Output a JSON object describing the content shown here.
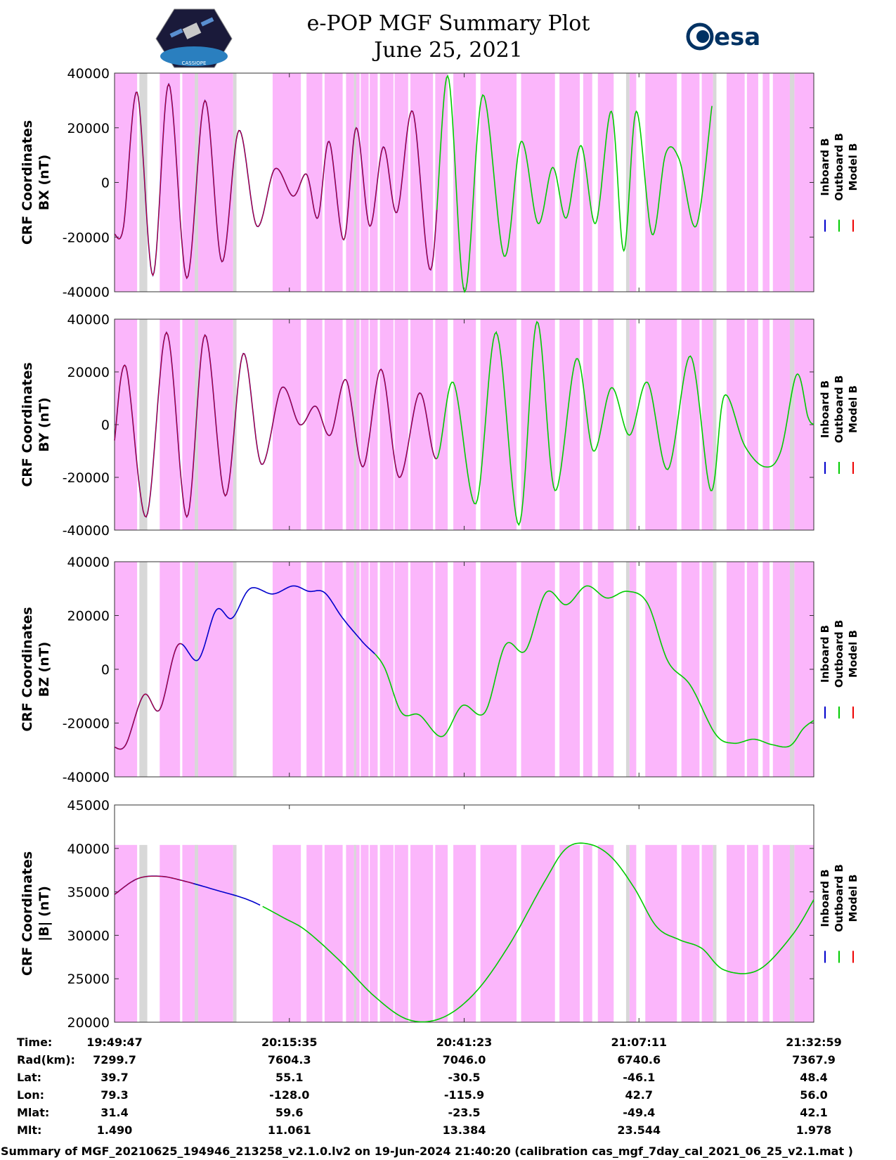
{
  "header": {
    "title": "e-POP MGF Summary Plot",
    "date": "June 25, 2021",
    "logo_left_name": "CASSIOPE mission patch",
    "logo_left_text": "CASSIOPE",
    "logo_right_text": "esa"
  },
  "colors": {
    "inboard": "#0000cc",
    "outboard": "#00cc00",
    "model": "#ee0000",
    "shade_magenta": "#fbb6fb",
    "shade_gray": "#d8d8d8"
  },
  "legend": {
    "inboard": "Inboard B",
    "outboard": "Outboard B",
    "model": "Model B"
  },
  "chart_data": [
    {
      "type": "line",
      "title": "",
      "xlabel": "",
      "ylabel_line1": "CRF Coordinates",
      "ylabel_line2": "BX (nT)",
      "ylim": [
        -40000,
        40000
      ],
      "yticks": [
        40000,
        20000,
        0,
        -20000,
        -40000
      ],
      "ytick_labels": [
        "40000",
        "20000",
        "0",
        "-20000",
        "-40000"
      ],
      "x_range_s": [
        0,
        6192
      ],
      "shaded_ylim": [
        -40000,
        40000
      ],
      "series": [
        {
          "name": "Model B",
          "x": [
            0,
            80,
            200,
            340,
            480,
            640,
            800,
            950,
            1100,
            1260,
            1420,
            1580,
            1700,
            1800,
            1900,
            2030,
            2140,
            2260,
            2380,
            2500,
            2640,
            2800,
            2950,
            3100,
            3260,
            3450,
            3600,
            3750,
            3880,
            4000,
            4130,
            4260,
            4400,
            4510,
            4620,
            4760,
            4880,
            5000,
            5150,
            5290,
            5450,
            5620,
            5780,
            5900,
            5980,
            6070,
            6192
          ],
          "y": [
            -19000,
            -16000,
            33000,
            -34000,
            36000,
            -35000,
            30000,
            -29000,
            19000,
            -16000,
            5000,
            -5000,
            3000,
            -13000,
            15000,
            -21000,
            20000,
            -16000,
            13000,
            -11000,
            26000,
            -32000,
            39000,
            -40000,
            32000,
            -27000,
            15000,
            -15000,
            5500,
            -13000,
            13500,
            -15000,
            26000,
            -25000,
            26000,
            -19000,
            10500,
            8500,
            -16000,
            28000,
            null,
            null,
            null,
            null,
            null,
            null,
            null
          ]
        },
        {
          "name": "Inboard B",
          "x": [
            0,
            80,
            200,
            340,
            480,
            640,
            800,
            950,
            1100,
            1260,
            1420,
            1580,
            1700,
            1800,
            1900,
            2030,
            2140,
            2260,
            2380,
            2500,
            2640,
            2800,
            2950,
            3100,
            3260,
            3450,
            3600,
            3750,
            3880,
            4000,
            4130,
            4260,
            4400,
            4510,
            4620,
            4760,
            4880,
            5000,
            5150,
            5290,
            5450,
            5620,
            5780,
            5900,
            5980,
            6070,
            6192
          ],
          "y": [
            -19000,
            -16000,
            33000,
            -34000,
            36000,
            -35000,
            30000,
            -29000,
            19000,
            -16000,
            5000,
            -5000,
            3000,
            -13000,
            15000,
            -21000,
            20000,
            -16000,
            13000,
            -11000,
            26000,
            -32000,
            39000,
            -40000,
            32000,
            -27000,
            15000,
            -15000,
            5500,
            -13000,
            13500,
            -15000,
            26000,
            -25000,
            26000,
            -19000,
            10500,
            8500,
            -16000,
            28000,
            null,
            null,
            null,
            null,
            null,
            null,
            null
          ]
        },
        {
          "name": "Outboard B",
          "x": [
            0,
            80,
            200,
            340,
            480,
            640,
            800,
            950,
            1100,
            1260,
            1420,
            1580,
            1700,
            1800,
            1900,
            2030,
            2140,
            2260,
            2380,
            2500,
            2640,
            2800,
            2950,
            3100,
            3260,
            3450,
            3600,
            3750,
            3880,
            4000,
            4130,
            4260,
            4400,
            4510,
            4620,
            4760,
            4880,
            5000,
            5150,
            5290,
            5450,
            5620,
            5780,
            5900,
            5980,
            6070,
            6192
          ],
          "y": [
            -19000,
            -16000,
            33000,
            -34000,
            36000,
            -35000,
            30000,
            -29000,
            19000,
            -16000,
            5000,
            -5000,
            3000,
            -13000,
            15000,
            -21000,
            20000,
            -16000,
            13000,
            -11000,
            26000,
            -32000,
            39000,
            -40000,
            32000,
            -27000,
            15000,
            -15000,
            5500,
            -13000,
            13500,
            -15000,
            26000,
            -25000,
            26000,
            -19000,
            10500,
            8500,
            -16000,
            28000,
            null,
            null,
            null,
            null,
            null,
            null,
            null
          ]
        }
      ],
      "color_segments_s": {
        "model_end": 2850,
        "inboard_end": 2850
      }
    },
    {
      "type": "line",
      "ylabel_line1": "CRF Coordinates",
      "ylabel_line2": "BY (nT)",
      "ylim": [
        -40000,
        40000
      ],
      "yticks": [
        40000,
        20000,
        0,
        -20000,
        -40000
      ],
      "ytick_labels": [
        "40000",
        "20000",
        "0",
        "-20000",
        "-40000"
      ],
      "x_range_s": [
        0,
        6192
      ],
      "shaded_ylim": [
        -40000,
        40000
      ],
      "series": [
        {
          "name": "Model B",
          "x": [
            0,
            100,
            280,
            460,
            640,
            800,
            980,
            1140,
            1300,
            1480,
            1640,
            1780,
            1910,
            2050,
            2200,
            2360,
            2520,
            2700,
            2850,
            3000,
            3200,
            3380,
            3580,
            3740,
            3900,
            4090,
            4240,
            4400,
            4560,
            4720,
            4900,
            5100,
            5280,
            5400,
            5580,
            5760,
            5900,
            6040,
            6140,
            6192
          ],
          "y": [
            -6000,
            22000,
            -35000,
            35000,
            -35000,
            34000,
            -27000,
            27000,
            -15000,
            14000,
            0,
            7000,
            -4000,
            17000,
            -16000,
            21000,
            -20000,
            12000,
            -13000,
            16000,
            -30000,
            35000,
            -38000,
            39000,
            -25000,
            25000,
            -10000,
            14000,
            -4000,
            16000,
            -17000,
            26000,
            -25000,
            11000,
            -8000,
            -16000,
            -10000,
            19000,
            3000,
            0
          ]
        }
      ]
    },
    {
      "type": "line",
      "ylabel_line1": "CRF Coordinates",
      "ylabel_line2": "BZ (nT)",
      "ylim": [
        -40000,
        40000
      ],
      "yticks": [
        40000,
        20000,
        0,
        -20000,
        -40000
      ],
      "ytick_labels": [
        "40000",
        "20000",
        "0",
        "-20000",
        "-40000"
      ],
      "x_range_s": [
        0,
        6192
      ],
      "shaded_ylim": [
        -40000,
        40000
      ],
      "series": [
        {
          "name": "Model B",
          "x": [
            0,
            100,
            260,
            400,
            560,
            740,
            900,
            1040,
            1200,
            1400,
            1580,
            1720,
            1860,
            2020,
            2200,
            2380,
            2540,
            2700,
            2900,
            3080,
            3280,
            3460,
            3640,
            3820,
            4000,
            4180,
            4360,
            4540,
            4720,
            4900,
            5100,
            5320,
            5480,
            5660,
            5820,
            5980,
            6100,
            6192
          ],
          "y": [
            -29000,
            -28000,
            -9500,
            -15000,
            9000,
            3500,
            22000,
            19000,
            30000,
            28000,
            31000,
            29000,
            28500,
            19000,
            10000,
            1500,
            -16000,
            -17000,
            -25000,
            -13500,
            -16000,
            9000,
            7000,
            28500,
            24000,
            31000,
            26500,
            29000,
            24500,
            3000,
            -6000,
            -24000,
            -27500,
            -26000,
            -28000,
            -28500,
            -22000,
            -19000
          ]
        }
      ]
    },
    {
      "type": "line",
      "ylabel_line1": "CRF Coordinates",
      "ylabel_line2": "|B| (nT)",
      "ylim": [
        20000,
        45000
      ],
      "yticks": [
        45000,
        40000,
        35000,
        30000,
        25000,
        20000
      ],
      "ytick_labels": [
        "45000",
        "40000",
        "35000",
        "30000",
        "25000",
        "20000"
      ],
      "x_range_s": [
        0,
        6192
      ],
      "shaded_ylim": [
        20000,
        40400
      ],
      "series": [
        {
          "name": "Model B",
          "x": [
            0,
            200,
            400,
            600,
            900,
            1200,
            1500,
            1700,
            2000,
            2300,
            2600,
            2900,
            3200,
            3500,
            3800,
            4000,
            4200,
            4400,
            4600,
            4800,
            5000,
            5200,
            5400,
            5700,
            6000,
            6192
          ],
          "y": [
            34700,
            36500,
            36800,
            36300,
            35200,
            34000,
            32000,
            30500,
            27000,
            23000,
            20300,
            20500,
            23500,
            29000,
            36000,
            40000,
            40500,
            39000,
            35500,
            31000,
            29500,
            28500,
            26000,
            26000,
            30000,
            34100
          ]
        }
      ]
    }
  ],
  "color_switch_s": {
    "panel1": 2850,
    "panel2": 2850,
    "panel3": 2300,
    "panel4": 1300,
    "red_end_bz": 600,
    "red_end_b": 700
  },
  "shading": {
    "magenta_s": [
      [
        0,
        200
      ],
      [
        400,
        580
      ],
      [
        600,
        1050
      ],
      [
        1400,
        1650
      ],
      [
        1700,
        1840
      ],
      [
        1860,
        2020
      ],
      [
        2050,
        2170
      ],
      [
        2180,
        2250
      ],
      [
        2260,
        2330
      ],
      [
        2350,
        2470
      ],
      [
        2480,
        2600
      ],
      [
        2620,
        2820
      ],
      [
        2840,
        2950
      ],
      [
        3000,
        3200
      ],
      [
        3240,
        3560
      ],
      [
        3600,
        3900
      ],
      [
        3940,
        4120
      ],
      [
        4150,
        4230
      ],
      [
        4280,
        4420
      ],
      [
        4560,
        4620
      ],
      [
        4700,
        4980
      ],
      [
        5020,
        5180
      ],
      [
        5200,
        5300
      ],
      [
        5420,
        5580
      ],
      [
        5600,
        5700
      ],
      [
        5740,
        5800
      ],
      [
        5830,
        5990
      ],
      [
        6020,
        6192
      ]
    ],
    "gray_s": [
      [
        220,
        290
      ],
      [
        710,
        740
      ],
      [
        1050,
        1080
      ],
      [
        2120,
        2140
      ],
      [
        4530,
        4560
      ],
      [
        5300,
        5330
      ],
      [
        5980,
        6020
      ]
    ]
  },
  "time_table": {
    "row_labels": [
      "Time:",
      "Rad(km):",
      "Lat:",
      "Lon:",
      "Mlat:",
      "Mlt:"
    ],
    "columns": [
      {
        "x_s": 0,
        "values": [
          "19:49:47",
          "7299.7",
          "39.7",
          "79.3",
          "31.4",
          "1.490"
        ]
      },
      {
        "x_s": 1548,
        "values": [
          "20:15:35",
          "7604.3",
          "55.1",
          "-128.0",
          "59.6",
          "11.061"
        ]
      },
      {
        "x_s": 3096,
        "values": [
          "20:41:23",
          "7046.0",
          "-30.5",
          "-115.9",
          "-23.5",
          "13.384"
        ]
      },
      {
        "x_s": 4644,
        "values": [
          "21:07:11",
          "6740.6",
          "-46.1",
          "42.7",
          "-49.4",
          "23.544"
        ]
      },
      {
        "x_s": 6192,
        "values": [
          "21:32:59",
          "7367.9",
          "48.4",
          "56.0",
          "42.1",
          "1.978"
        ]
      }
    ]
  },
  "footer": "Summary of MGF_20210625_194946_213258_v2.1.0.lv2 on 19-Jun-2024 21:40:20 (calibration cas_mgf_7day_cal_2021_06_25_v2.1.mat )"
}
